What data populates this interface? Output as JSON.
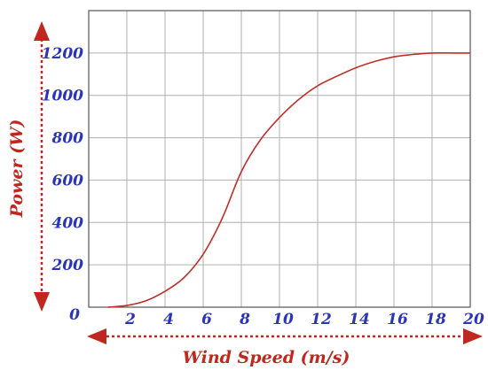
{
  "chart_data": {
    "type": "line",
    "title": "",
    "xlabel": "Wind Speed (m/s)",
    "ylabel": "Power (W)",
    "xlim": [
      0,
      20
    ],
    "ylim": [
      0,
      1400
    ],
    "origin_label": "0",
    "x_ticks": [
      "2",
      "4",
      "6",
      "8",
      "10",
      "12",
      "14",
      "16",
      "18",
      "20"
    ],
    "y_ticks": [
      "200",
      "400",
      "600",
      "800",
      "1000",
      "1200"
    ],
    "grid": true,
    "series": [
      {
        "color": "#c0302a",
        "x": [
          1,
          2,
          3,
          4,
          5,
          6,
          7,
          8,
          9,
          10,
          11,
          12,
          13,
          14,
          15,
          16,
          17,
          18,
          19,
          20
        ],
        "y": [
          0,
          8,
          30,
          75,
          140,
          250,
          420,
          640,
          790,
          895,
          980,
          1045,
          1090,
          1130,
          1160,
          1182,
          1193,
          1200,
          1200,
          1200
        ]
      }
    ],
    "colors": {
      "ticks": "#2a35b8",
      "axis_titles": "#c0281f",
      "arrows": "#c0281f",
      "grid": "#b0b0b0"
    }
  }
}
